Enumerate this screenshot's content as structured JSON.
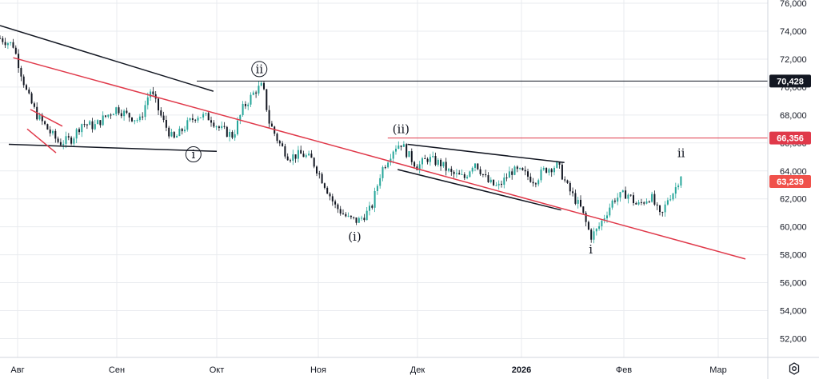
{
  "chart_data": {
    "type": "candlestick",
    "title": "",
    "xlabel": "",
    "ylabel": "",
    "ylim": [
      50500,
      76200
    ],
    "y_ticks": [
      "76,000",
      "74,000",
      "72,000",
      "70,000",
      "68,000",
      "66,000",
      "64,000",
      "62,000",
      "60,000",
      "58,000",
      "56,000",
      "54,000",
      "52,000"
    ],
    "x_ticks": [
      "Авг",
      "Сен",
      "Окт",
      "Ноя",
      "Дек",
      "2026",
      "Фев",
      "Мар"
    ],
    "grid": true,
    "price_series": [
      [
        "07-28",
        73500
      ],
      [
        "07-31",
        73000
      ],
      [
        "08-04",
        69500
      ],
      [
        "08-07",
        68000
      ],
      [
        "08-11",
        66800
      ],
      [
        "08-14",
        66000
      ],
      [
        "08-18",
        66300
      ],
      [
        "08-21",
        67400
      ],
      [
        "08-25",
        67200
      ],
      [
        "08-28",
        67800
      ],
      [
        "09-01",
        68500
      ],
      [
        "09-04",
        68000
      ],
      [
        "09-08",
        67600
      ],
      [
        "09-11",
        69800
      ],
      [
        "09-15",
        67500
      ],
      [
        "09-18",
        66200
      ],
      [
        "09-22",
        67300
      ],
      [
        "09-25",
        68000
      ],
      [
        "09-29",
        67800
      ],
      [
        "10-02",
        67000
      ],
      [
        "10-06",
        66500
      ],
      [
        "10-09",
        68500
      ],
      [
        "10-13",
        69800
      ],
      [
        "10-15",
        70100
      ],
      [
        "10-17",
        67500
      ],
      [
        "10-20",
        66000
      ],
      [
        "10-23",
        65000
      ],
      [
        "10-27",
        65200
      ],
      [
        "10-30",
        64800
      ],
      [
        "11-03",
        63000
      ],
      [
        "11-06",
        61500
      ],
      [
        "11-10",
        60600
      ],
      [
        "11-13",
        60400
      ],
      [
        "11-17",
        61300
      ],
      [
        "11-20",
        64000
      ],
      [
        "11-24",
        65700
      ],
      [
        "11-26",
        66000
      ],
      [
        "11-28",
        65200
      ],
      [
        "12-01",
        64300
      ],
      [
        "12-04",
        64900
      ],
      [
        "12-08",
        64500
      ],
      [
        "12-11",
        63800
      ],
      [
        "12-15",
        63500
      ],
      [
        "12-18",
        64700
      ],
      [
        "12-22",
        63200
      ],
      [
        "12-25",
        62800
      ],
      [
        "12-29",
        64000
      ],
      [
        "01-01",
        63900
      ],
      [
        "01-05",
        63300
      ],
      [
        "01-08",
        64100
      ],
      [
        "01-12",
        64400
      ],
      [
        "01-15",
        62800
      ],
      [
        "01-19",
        61300
      ],
      [
        "01-22",
        59300
      ],
      [
        "01-24",
        59800
      ],
      [
        "01-26",
        60700
      ],
      [
        "01-29",
        62000
      ],
      [
        "02-02",
        62400
      ],
      [
        "02-05",
        61500
      ],
      [
        "02-09",
        62200
      ],
      [
        "02-12",
        60600
      ],
      [
        "02-14",
        62000
      ],
      [
        "02-16",
        62600
      ],
      [
        "02-18",
        63800
      ]
    ],
    "horizontal_levels": [
      {
        "value": 70428,
        "label": "70,428",
        "color": "#131722"
      },
      {
        "value": 66356,
        "label": "66,356",
        "color": "#e0394a"
      }
    ],
    "last_price": {
      "value": 63239,
      "label": "63,239",
      "color": "#f0514b"
    },
    "wave_labels": [
      {
        "text": "i",
        "circled": true,
        "at": [
          "09-24",
          64900
        ]
      },
      {
        "text": "ii",
        "circled": true,
        "at": [
          "10-14",
          71000
        ]
      },
      {
        "text": "(i)",
        "circled": false,
        "at": [
          "11-12",
          59000
        ]
      },
      {
        "text": "(ii)",
        "circled": false,
        "at": [
          "11-26",
          66700
        ]
      },
      {
        "text": "i",
        "circled": false,
        "at": [
          "01-22",
          58100
        ]
      },
      {
        "text": "ii",
        "circled": false,
        "at": [
          "02-18",
          65000
        ]
      }
    ],
    "trendlines": [
      {
        "color": "#131722",
        "points": [
          [
            "07-28",
            74400
          ],
          [
            "09-30",
            69700
          ]
        ]
      },
      {
        "color": "#131722",
        "points": [
          [
            "07-30",
            65900
          ],
          [
            "10-01",
            65400
          ]
        ]
      },
      {
        "color": "#e0394a",
        "points": [
          [
            "07-31",
            72100
          ],
          [
            "03-10",
            57700
          ]
        ]
      },
      {
        "color": "#e0394a",
        "points": [
          [
            "08-05",
            68400
          ],
          [
            "08-15",
            67200
          ]
        ]
      },
      {
        "color": "#e0394a",
        "points": [
          [
            "08-04",
            67000
          ],
          [
            "08-13",
            65300
          ]
        ]
      },
      {
        "color": "#131722",
        "points": [
          [
            "11-28",
            65900
          ],
          [
            "01-14",
            64600
          ]
        ]
      },
      {
        "color": "#131722",
        "points": [
          [
            "11-25",
            64100
          ],
          [
            "01-13",
            61200
          ]
        ]
      }
    ],
    "colors": {
      "up": "#26a69a",
      "down": "#131722",
      "trend_red": "#e0394a",
      "grid": "#e9ebef"
    }
  }
}
